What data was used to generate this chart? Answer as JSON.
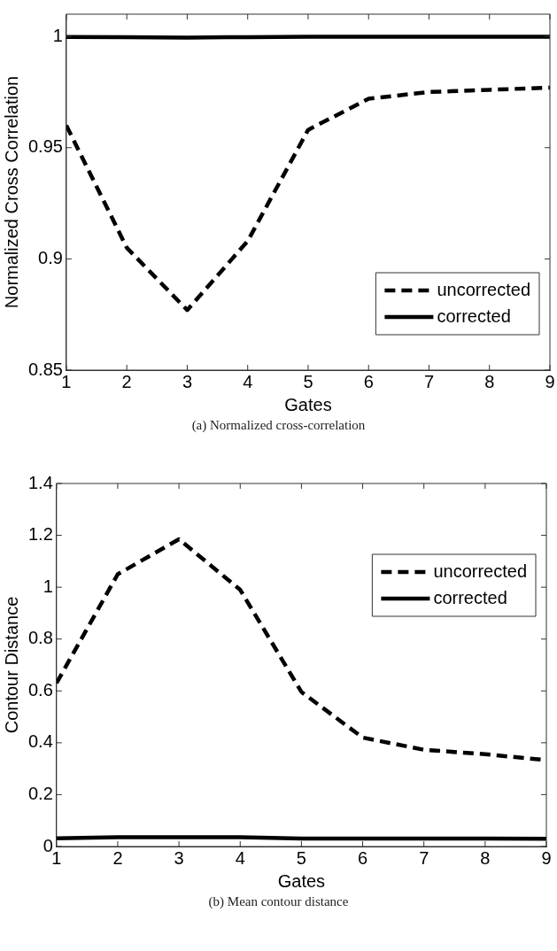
{
  "chart_data": [
    {
      "type": "line",
      "xlabel": "Gates",
      "ylabel": "Normalized Cross Correlation",
      "annotations": [
        "(a) Normalized cross-correlation"
      ],
      "x": [
        1,
        2,
        3,
        4,
        5,
        6,
        7,
        8,
        9
      ],
      "xlim": [
        1,
        9
      ],
      "xticks": [
        1,
        2,
        3,
        4,
        5,
        6,
        7,
        8,
        9
      ],
      "ylim": [
        0.85,
        1.01
      ],
      "yticks": [
        0.85,
        0.9,
        0.95,
        1
      ],
      "grid": false,
      "legend": "bottom right",
      "marker": "none",
      "series": [
        {
          "name": "uncorrected",
          "color": "#000000",
          "line_style": "dashed",
          "values": [
            0.96,
            0.905,
            0.877,
            0.908,
            0.958,
            0.972,
            0.975,
            0.976,
            0.977
          ]
        },
        {
          "name": "corrected",
          "color": "#000000",
          "line_style": "solid",
          "values": [
            0.9998,
            0.9997,
            0.9995,
            0.9997,
            0.9999,
            0.9999,
            0.9999,
            0.9999,
            0.9999
          ]
        }
      ]
    },
    {
      "type": "line",
      "xlabel": "Gates",
      "ylabel": "Contour Distance",
      "annotations": [
        "(b) Mean contour distance"
      ],
      "x": [
        1,
        2,
        3,
        4,
        5,
        6,
        7,
        8,
        9
      ],
      "xlim": [
        1,
        9
      ],
      "xticks": [
        1,
        2,
        3,
        4,
        5,
        6,
        7,
        8,
        9
      ],
      "ylim": [
        0,
        1.4
      ],
      "yticks": [
        0,
        0.2,
        0.4,
        0.6,
        0.8,
        1,
        1.2,
        1.4
      ],
      "grid": false,
      "legend": "top right",
      "marker": "none",
      "series": [
        {
          "name": "uncorrected",
          "color": "#000000",
          "line_style": "dashed",
          "values": [
            0.63,
            1.05,
            1.185,
            0.99,
            0.596,
            0.42,
            0.373,
            0.356,
            0.333
          ]
        },
        {
          "name": "corrected",
          "color": "#000000",
          "line_style": "solid",
          "values": [
            0.032,
            0.036,
            0.036,
            0.036,
            0.031,
            0.031,
            0.031,
            0.031,
            0.03
          ]
        }
      ]
    }
  ]
}
